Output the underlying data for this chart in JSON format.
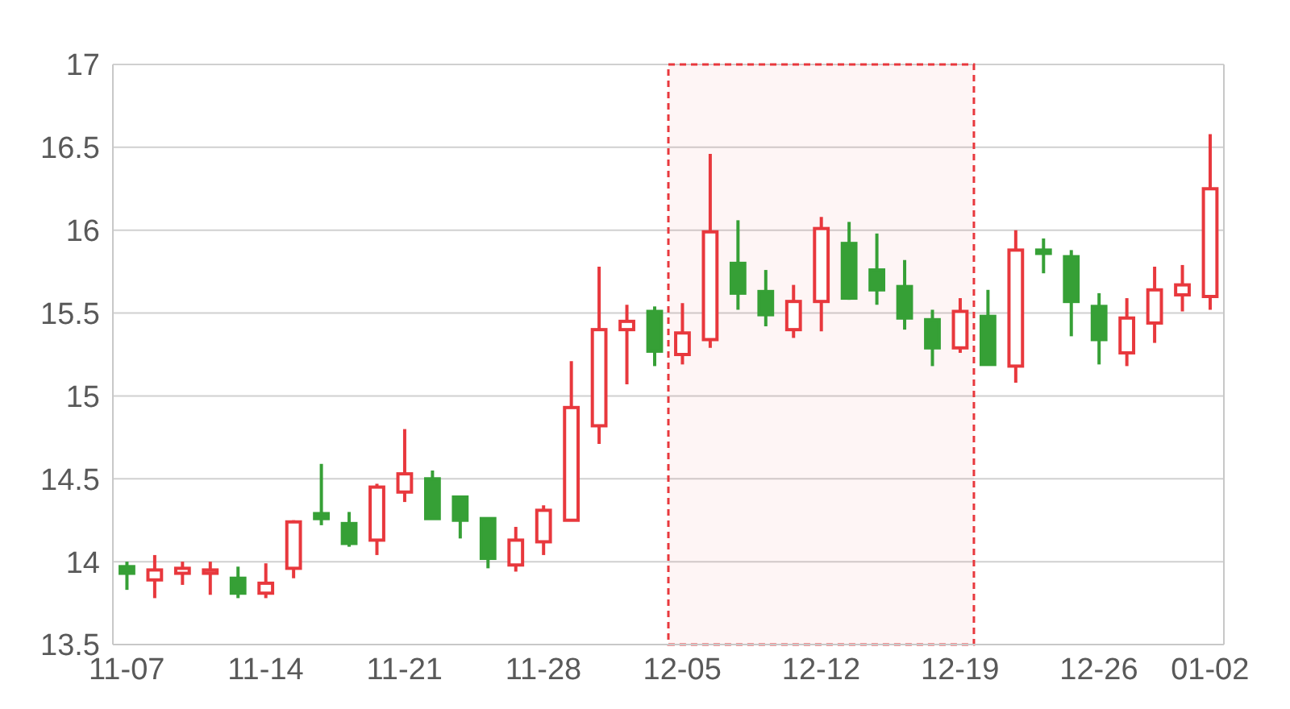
{
  "chart_data": {
    "type": "candlestick",
    "categories": [
      "11-07",
      null,
      null,
      null,
      null,
      "11-14",
      null,
      null,
      null,
      null,
      "11-21",
      null,
      null,
      null,
      null,
      "11-28",
      null,
      null,
      null,
      null,
      "12-05",
      null,
      null,
      null,
      null,
      "12-12",
      null,
      null,
      null,
      null,
      "12-19",
      null,
      null,
      null,
      null,
      "12-26",
      null,
      null,
      null,
      "01-02"
    ],
    "ohlc": [
      [
        13.97,
        14.0,
        13.83,
        13.93
      ],
      [
        13.89,
        14.04,
        13.78,
        13.95
      ],
      [
        13.93,
        14.0,
        13.86,
        13.96
      ],
      [
        13.93,
        14.0,
        13.8,
        13.95
      ],
      [
        13.9,
        13.97,
        13.78,
        13.81
      ],
      [
        13.81,
        13.99,
        13.78,
        13.87
      ],
      [
        13.96,
        14.25,
        13.9,
        14.24
      ],
      [
        14.29,
        14.59,
        14.22,
        14.26
      ],
      [
        14.23,
        14.3,
        14.09,
        14.11
      ],
      [
        14.13,
        14.47,
        14.04,
        14.45
      ],
      [
        14.42,
        14.8,
        14.36,
        14.53
      ],
      [
        14.5,
        14.55,
        14.26,
        14.26
      ],
      [
        14.39,
        14.39,
        14.14,
        14.25
      ],
      [
        14.26,
        14.26,
        13.96,
        14.02
      ],
      [
        13.98,
        14.21,
        13.94,
        14.13
      ],
      [
        14.12,
        14.34,
        14.04,
        14.31
      ],
      [
        14.25,
        15.21,
        14.25,
        14.93
      ],
      [
        14.82,
        15.78,
        14.71,
        15.4
      ],
      [
        15.4,
        15.55,
        15.07,
        15.45
      ],
      [
        15.51,
        15.54,
        15.18,
        15.27
      ],
      [
        15.25,
        15.56,
        15.19,
        15.38
      ],
      [
        15.34,
        16.46,
        15.29,
        15.99
      ],
      [
        15.8,
        16.06,
        15.52,
        15.62
      ],
      [
        15.63,
        15.76,
        15.42,
        15.49
      ],
      [
        15.4,
        15.67,
        15.35,
        15.57
      ],
      [
        15.57,
        16.08,
        15.39,
        16.01
      ],
      [
        15.92,
        16.05,
        15.58,
        15.59
      ],
      [
        15.76,
        15.98,
        15.55,
        15.64
      ],
      [
        15.66,
        15.82,
        15.4,
        15.47
      ],
      [
        15.46,
        15.52,
        15.18,
        15.29
      ],
      [
        15.29,
        15.59,
        15.26,
        15.51
      ],
      [
        15.48,
        15.64,
        15.19,
        15.19
      ],
      [
        15.18,
        16.0,
        15.08,
        15.88
      ],
      [
        15.88,
        15.95,
        15.74,
        15.86
      ],
      [
        15.84,
        15.88,
        15.36,
        15.57
      ],
      [
        15.54,
        15.62,
        15.19,
        15.34
      ],
      [
        15.26,
        15.59,
        15.18,
        15.47
      ],
      [
        15.44,
        15.78,
        15.32,
        15.64
      ],
      [
        15.61,
        15.79,
        15.51,
        15.67
      ],
      [
        15.6,
        16.58,
        15.52,
        16.25
      ]
    ],
    "colors": [
      "#36a036",
      "#e8383d",
      "#e8383d",
      "#e8383d",
      "#36a036",
      "#e8383d",
      "#e8383d",
      "#36a036",
      "#36a036",
      "#e8383d",
      "#e8383d",
      "#36a036",
      "#36a036",
      "#36a036",
      "#e8383d",
      "#e8383d",
      "#e8383d",
      "#e8383d",
      "#e8383d",
      "#36a036",
      "#e8383d",
      "#e8383d",
      "#36a036",
      "#36a036",
      "#e8383d",
      "#e8383d",
      "#36a036",
      "#36a036",
      "#36a036",
      "#36a036",
      "#e8383d",
      "#36a036",
      "#e8383d",
      "#36a036",
      "#36a036",
      "#36a036",
      "#e8383d",
      "#e8383d",
      "#e8383d",
      "#e8383d"
    ],
    "ylim": [
      13.5,
      17
    ],
    "yticks": [
      13.5,
      14,
      14.5,
      15,
      15.5,
      16,
      16.5,
      17
    ],
    "grid": "y",
    "bands": [
      {
        "axis": "x",
        "from": "12-05",
        "to": "12-19",
        "color": "#e8383d"
      }
    ]
  }
}
